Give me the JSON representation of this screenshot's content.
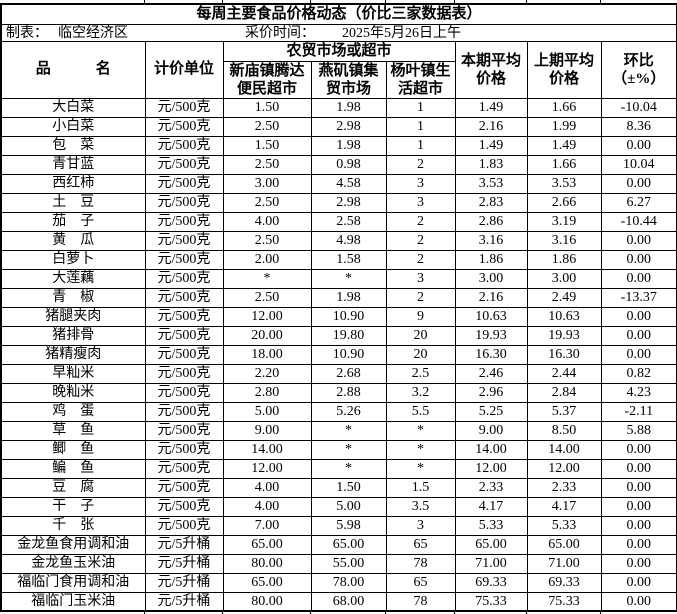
{
  "title": "每周主要食品价格动态（价比三家数据表）",
  "info": {
    "maker_label": "制表：",
    "maker_value": "临空经济区",
    "time_label": "采价时间：",
    "time_value": "2025年5月26日上午"
  },
  "table": {
    "headers": {
      "product": "品　　　名",
      "unit": "计价单位",
      "market_group": "农贸市场或超市",
      "markets": [
        "新庙镇腾达\n便民超市",
        "燕矶镇集\n贸市场",
        "杨叶镇生\n活超市"
      ],
      "current_avg": "本期平均\n价格",
      "prev_avg": "上期平均\n价格",
      "change": "环比\n（±%）"
    },
    "rows": [
      [
        "大白菜",
        "元/500克",
        "1.50",
        "1.98",
        "1",
        "1.49",
        "1.66",
        "-10.04"
      ],
      [
        "小白菜",
        "元/500克",
        "2.50",
        "2.98",
        "1",
        "2.16",
        "1.99",
        "8.36"
      ],
      [
        "包　菜",
        "元/500克",
        "1.50",
        "1.98",
        "1",
        "1.49",
        "1.49",
        "0.00"
      ],
      [
        "青甘蓝",
        "元/500克",
        "2.50",
        "0.98",
        "2",
        "1.83",
        "1.66",
        "10.04"
      ],
      [
        "西红柿",
        "元/500克",
        "3.00",
        "4.58",
        "3",
        "3.53",
        "3.53",
        "0.00"
      ],
      [
        "土　豆",
        "元/500克",
        "2.50",
        "2.98",
        "3",
        "2.83",
        "2.66",
        "6.27"
      ],
      [
        "茄　子",
        "元/500克",
        "4.00",
        "2.58",
        "2",
        "2.86",
        "3.19",
        "-10.44"
      ],
      [
        "黄　瓜",
        "元/500克",
        "2.50",
        "4.98",
        "2",
        "3.16",
        "3.16",
        "0.00"
      ],
      [
        "白萝卜",
        "元/500克",
        "2.00",
        "1.58",
        "2",
        "1.86",
        "1.86",
        "0.00"
      ],
      [
        "大莲藕",
        "元/500克",
        "*",
        "*",
        "3",
        "3.00",
        "3.00",
        "0.00"
      ],
      [
        "青　椒",
        "元/500克",
        "2.50",
        "1.98",
        "2",
        "2.16",
        "2.49",
        "-13.37"
      ],
      [
        "猪腿夹肉",
        "元/500克",
        "12.00",
        "10.90",
        "9",
        "10.63",
        "10.63",
        "0.00"
      ],
      [
        "猪排骨",
        "元/500克",
        "20.00",
        "19.80",
        "20",
        "19.93",
        "19.93",
        "0.00"
      ],
      [
        "猪精瘦肉",
        "元/500克",
        "18.00",
        "10.90",
        "20",
        "16.30",
        "16.30",
        "0.00"
      ],
      [
        "早籼米",
        "元/500克",
        "2.20",
        "2.68",
        "2.5",
        "2.46",
        "2.44",
        "0.82"
      ],
      [
        "晚籼米",
        "元/500克",
        "2.80",
        "2.88",
        "3.2",
        "2.96",
        "2.84",
        "4.23"
      ],
      [
        "鸡　蛋",
        "元/500克",
        "5.00",
        "5.26",
        "5.5",
        "5.25",
        "5.37",
        "-2.11"
      ],
      [
        "草　鱼",
        "元/500克",
        "9.00",
        "*",
        "*",
        "9.00",
        "8.50",
        "5.88"
      ],
      [
        "鲫　鱼",
        "元/500克",
        "14.00",
        "*",
        "*",
        "14.00",
        "14.00",
        "0.00"
      ],
      [
        "鳊　鱼",
        "元/500克",
        "12.00",
        "*",
        "*",
        "12.00",
        "12.00",
        "0.00"
      ],
      [
        "豆　腐",
        "元/500克",
        "4.00",
        "1.50",
        "1.5",
        "2.33",
        "2.33",
        "0.00"
      ],
      [
        "干　子",
        "元/500克",
        "4.00",
        "5.00",
        "3.5",
        "4.17",
        "4.17",
        "0.00"
      ],
      [
        "千　张",
        "元/500克",
        "7.00",
        "5.98",
        "3",
        "5.33",
        "5.33",
        "0.00"
      ],
      [
        "金龙鱼食用调和油",
        "元/5升桶",
        "65.00",
        "65.00",
        "65",
        "65.00",
        "65.00",
        "0.00"
      ],
      [
        "金龙鱼玉米油",
        "元/5升桶",
        "80.00",
        "55.00",
        "78",
        "71.00",
        "71.00",
        "0.00"
      ],
      [
        "福临门食用调和油",
        "元/5升桶",
        "65.00",
        "78.00",
        "65",
        "69.33",
        "69.33",
        "0.00"
      ],
      [
        "福临门玉米油",
        "元/5升桶",
        "80.00",
        "68.00",
        "78",
        "75.33",
        "75.33",
        "0.00"
      ]
    ]
  }
}
